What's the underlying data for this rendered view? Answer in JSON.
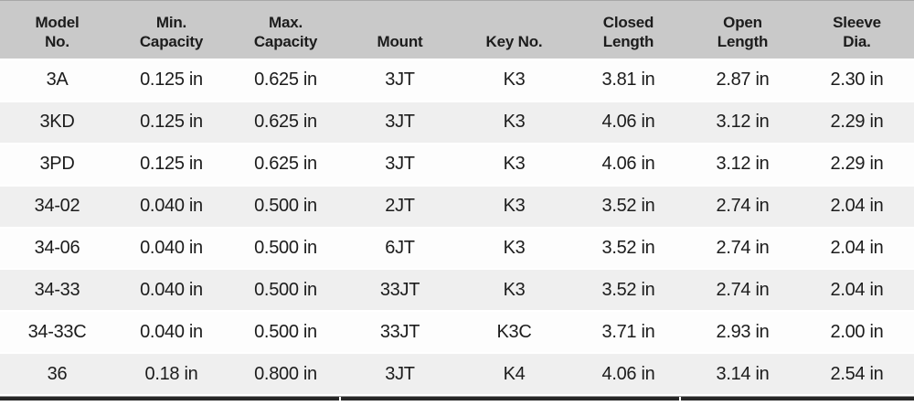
{
  "table": {
    "columns": [
      {
        "id": "model-no",
        "lines": [
          "Model",
          "No."
        ]
      },
      {
        "id": "min-capacity",
        "lines": [
          "Min.",
          "Capacity"
        ]
      },
      {
        "id": "max-capacity",
        "lines": [
          "Max.",
          "Capacity"
        ]
      },
      {
        "id": "mount",
        "lines": [
          "Mount"
        ]
      },
      {
        "id": "key-no",
        "lines": [
          "Key No."
        ]
      },
      {
        "id": "closed-length",
        "lines": [
          "Closed",
          "Length"
        ]
      },
      {
        "id": "open-length",
        "lines": [
          "Open",
          "Length"
        ]
      },
      {
        "id": "sleeve-dia",
        "lines": [
          "Sleeve",
          "Dia."
        ]
      }
    ],
    "rows": [
      [
        "3A",
        "0.125 in",
        "0.625 in",
        "3JT",
        "K3",
        "3.81 in",
        "2.87 in",
        "2.30 in"
      ],
      [
        "3KD",
        "0.125 in",
        "0.625 in",
        "3JT",
        "K3",
        "4.06 in",
        "3.12 in",
        "2.29 in"
      ],
      [
        "3PD",
        "0.125 in",
        "0.625 in",
        "3JT",
        "K3",
        "4.06 in",
        "3.12 in",
        "2.29 in"
      ],
      [
        "34-02",
        "0.040 in",
        "0.500 in",
        "2JT",
        "K3",
        "3.52 in",
        "2.74 in",
        "2.04 in"
      ],
      [
        "34-06",
        "0.040 in",
        "0.500 in",
        "6JT",
        "K3",
        "3.52 in",
        "2.74 in",
        "2.04 in"
      ],
      [
        "34-33",
        "0.040 in",
        "0.500 in",
        "33JT",
        "K3",
        "3.52 in",
        "2.74 in",
        "2.04 in"
      ],
      [
        "34-33C",
        "0.040 in",
        "0.500 in",
        "33JT",
        "K3C",
        "3.71 in",
        "2.93 in",
        "2.00 in"
      ],
      [
        "36",
        "0.18 in",
        "0.800 in",
        "3JT",
        "K4",
        "4.06 in",
        "3.14 in",
        "2.54 in"
      ]
    ]
  },
  "colors": {
    "header_bg": "#c9c9c9",
    "row_even_bg": "#fdfdfd",
    "row_odd_bg": "#efefef",
    "bottom_rule": "#262626",
    "text": "#1c1c1c"
  }
}
